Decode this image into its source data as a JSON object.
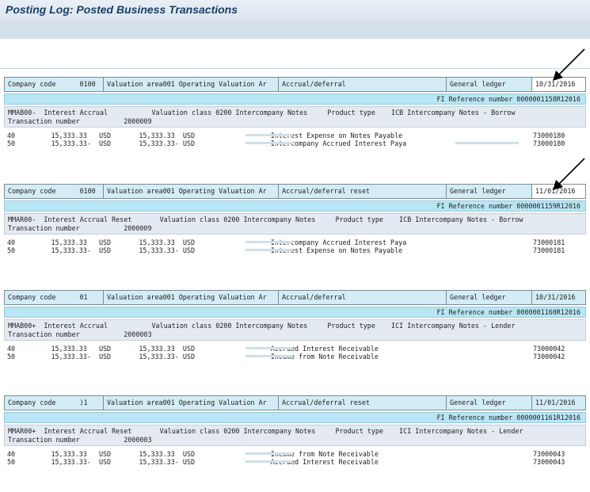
{
  "title": "Posting Log: Posted Business Transactions",
  "blocks": [
    {
      "company_code_label": "Company code",
      "company_code": "0100",
      "valuation_area": "Valuation area001 Operating Valuation Ar",
      "transaction": "Accrual/deferral",
      "ledger": "General ledger",
      "date": "10/31/2016",
      "fi_ref": "FI Reference number  0000001158R12016",
      "info_line1": "MMAB00-  Interest Accrual           Valuation class 0200 Intercompany Notes     Product type    ICB Intercompany Notes - Borrow",
      "info_line2": "Transaction number           2000009",
      "items": [
        {
          "line": "40         15,333.33   USD       15,333.33  USD                   Interest Expense on Notes Payable",
          "account": "73000180"
        },
        {
          "line": "50         15,333.33-  USD       15,333.33- USD                   Intercompany Accrued Interest Paya",
          "account": "73000180"
        }
      ]
    },
    {
      "company_code_label": "Company code",
      "company_code": "0100",
      "valuation_area": "Valuation area001 Operating Valuation Ar",
      "transaction": "Accrual/deferral reset",
      "ledger": "General ledger",
      "date": "11/01/2016",
      "fi_ref": "FI Reference number  0000001159R12016",
      "info_line1": "MMAR00-  Interest Accrual Reset       Valuation class 0200 Intercompany Notes     Product type    ICB Intercompany Notes - Borrow",
      "info_line2": "Transaction number           2000009",
      "items": [
        {
          "line": "40         15,333.33   USD       15,333.33  USD                   Intercompany Accrued Interest Paya",
          "account": "73000181"
        },
        {
          "line": "50         15,333.33-  USD       15,333.33- USD                   Interest Expense on Notes Payable",
          "account": "73000181"
        }
      ]
    },
    {
      "company_code_label": "Company code",
      "company_code": "01",
      "valuation_area": "Valuation area001 Operating Valuation Ar",
      "transaction": "Accrual/deferral",
      "ledger": "General ledger",
      "date": "10/31/2016",
      "fi_ref": "FI Reference number  0000001160R12016",
      "info_line1": "MMAB00+  Interest Accrual           Valuation class 0200 Intercompany Notes     Product type    ICI Intercompany Notes - Lender",
      "info_line2": "Transaction number           2000003",
      "items": [
        {
          "line": "40         15,333.33   USD       15,333.33  USD                   Accrued Interest Receivable",
          "account": "73000042"
        },
        {
          "line": "50         15,333.33-  USD       15,333.33- USD                   Income from Note Receivable",
          "account": "73000042"
        }
      ]
    },
    {
      "company_code_label": "Company code",
      "company_code": ")1",
      "valuation_area": "Valuation area001 Operating Valuation Ar",
      "transaction": "Accrual/deferral reset",
      "ledger": "General ledger",
      "date": "11/01/2016",
      "fi_ref": "FI Reference number  0000001161R12016",
      "info_line1": "MMAR00+  Interest Accrual Reset       Valuation class 0200 Intercompany Notes     Product type    ICI Intercompany Notes - Lender",
      "info_line2": "Transaction number           2000003",
      "items": [
        {
          "line": "40         15,333.33   USD       15,333.33  USD                   Income from Note Receivable",
          "account": "73000043"
        },
        {
          "line": "50         15,333.33-  USD       15,333.33- USD                   Accrued Interest Receivable",
          "account": "73000043"
        }
      ]
    }
  ]
}
